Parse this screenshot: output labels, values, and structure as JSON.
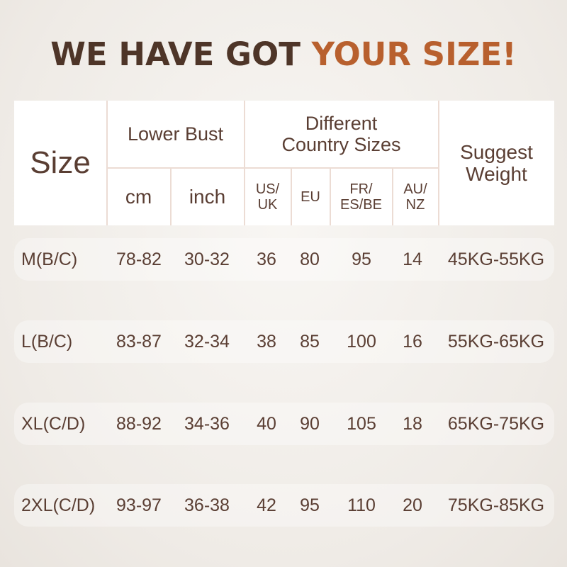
{
  "title": {
    "part1": "WE HAVE GOT ",
    "part2": "YOUR SIZE!"
  },
  "colors": {
    "text": "#5a3e33",
    "title": "#4e3528",
    "accent": "#b8602e"
  },
  "header": {
    "size": "Size",
    "lower_bust": "Lower Bust",
    "cm": "cm",
    "inch": "inch",
    "country": "Different Country Sizes",
    "us_uk": "US/ UK",
    "eu": "EU",
    "fr": "FR/ ES/BE",
    "au": "AU/ NZ",
    "weight": "Suggest Weight"
  },
  "rows": [
    [
      "M(B/C)",
      "78-82",
      "30-32",
      "36",
      "80",
      "95",
      "14",
      "45KG-55KG"
    ],
    [
      "L(B/C)",
      "83-87",
      "32-34",
      "38",
      "85",
      "100",
      "16",
      "55KG-65KG"
    ],
    [
      "XL(C/D)",
      "88-92",
      "34-36",
      "40",
      "90",
      "105",
      "18",
      "65KG-75KG"
    ],
    [
      "2XL(C/D)",
      "93-97",
      "36-38",
      "42",
      "95",
      "110",
      "20",
      "75KG-85KG"
    ]
  ]
}
